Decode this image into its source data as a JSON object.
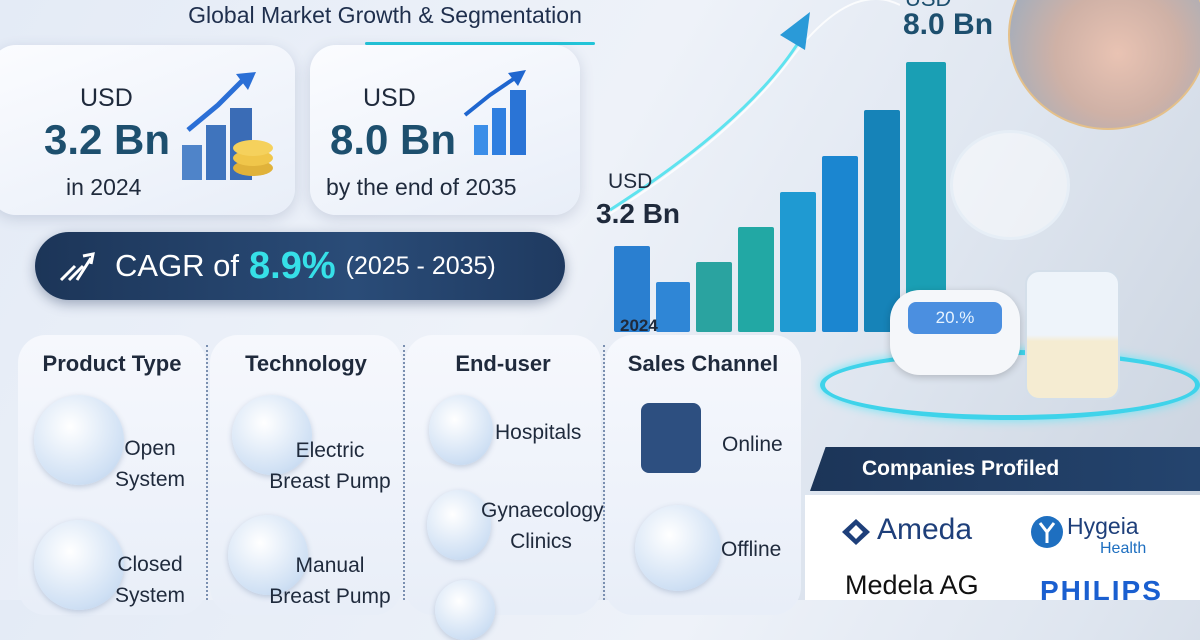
{
  "title": "Global Market Growth & Segmentation",
  "card_2024": {
    "currency": "USD",
    "value": "3.2 Bn",
    "caption": "in 2024"
  },
  "card_2035": {
    "currency": "USD",
    "value": "8.0 Bn",
    "caption": "by the end of 2035"
  },
  "cagr": {
    "prefix": "CAGR of",
    "value": "8.9%",
    "period": "(2025 - 2035)"
  },
  "chart": {
    "start_currency": "USD",
    "start_value": "3.2 Bn",
    "start_year": "2024",
    "end_currency": "USD",
    "end_value": "8.0 Bn",
    "display_text": "20.%"
  },
  "segments": [
    {
      "title": "Product Type",
      "items": [
        "Open System",
        "Closed System"
      ]
    },
    {
      "title": "Technology",
      "items": [
        "Electric Breast Pump",
        "Manual Breast Pump"
      ]
    },
    {
      "title": "End-user",
      "items": [
        "Hospitals",
        "Gynaecology Clinics"
      ]
    },
    {
      "title": "Sales Channel",
      "items": [
        "Online",
        "Offline"
      ]
    }
  ],
  "companies": {
    "heading": "Companies Profiled",
    "list": [
      "Ameda",
      "Hygeia",
      "Health",
      "Medela AG",
      "PHILIPS"
    ]
  },
  "colors": {
    "navy": "#1c3558",
    "accent": "#36e0e8",
    "value_text": "#1d4f6e",
    "philips": "#1a5fd0"
  }
}
